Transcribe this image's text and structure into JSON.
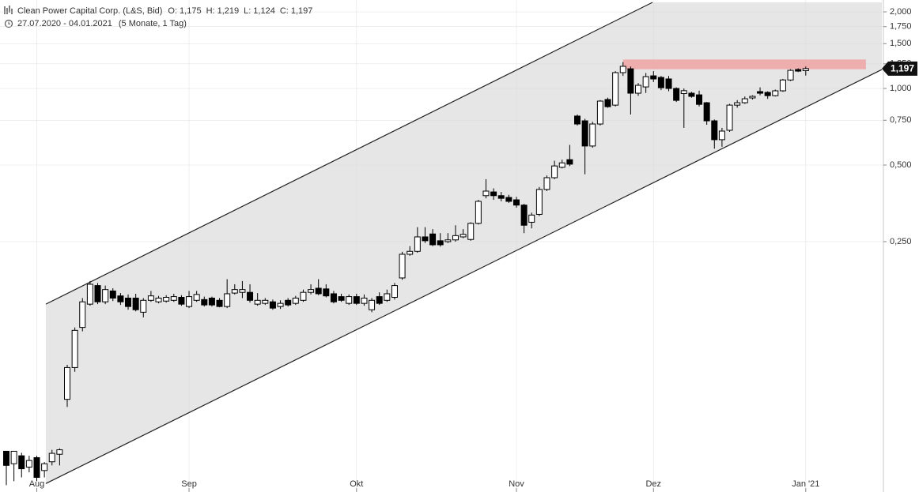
{
  "header": {
    "title": "Clean Power Capital Corp. (L&S, Bid)",
    "ohlc": [
      {
        "label": "O:",
        "value": "1,175"
      },
      {
        "label": "H:",
        "value": "1,219"
      },
      {
        "label": "L:",
        "value": "1,124"
      },
      {
        "label": "C:",
        "value": "1,197"
      }
    ],
    "period": "27.07.2020 - 04.01.2021",
    "duration": "(5 Monate, 1 Tag)"
  },
  "chart_data": {
    "type": "candlestick",
    "categories": [
      null,
      null,
      null,
      null,
      "Aug",
      null,
      null,
      null,
      null,
      null,
      null,
      null,
      null,
      null,
      null,
      null,
      null,
      null,
      null,
      null,
      null,
      null,
      null,
      null,
      "Sep",
      null,
      null,
      null,
      null,
      null,
      null,
      null,
      null,
      null,
      null,
      null,
      null,
      null,
      null,
      null,
      null,
      null,
      null,
      null,
      null,
      null,
      "Okt",
      null,
      null,
      null,
      null,
      null,
      null,
      null,
      null,
      null,
      null,
      null,
      null,
      null,
      null,
      null,
      null,
      null,
      null,
      null,
      null,
      "Nov",
      null,
      null,
      null,
      null,
      null,
      null,
      null,
      null,
      null,
      null,
      null,
      null,
      null,
      null,
      null,
      null,
      null,
      "Dez",
      null,
      null,
      null,
      null,
      null,
      null,
      null,
      null,
      null,
      null,
      null,
      null,
      null,
      null,
      null,
      null,
      null,
      null,
      null,
      "Jan '21"
    ],
    "open": [
      0.0375,
      0.0335,
      0.036,
      0.0325,
      0.0354,
      0.0315,
      0.0341,
      0.0365,
      0.06,
      0.08,
      0.115,
      0.142,
      0.168,
      0.145,
      0.16,
      0.153,
      0.15,
      0.15,
      0.132,
      0.147,
      0.145,
      0.146,
      0.147,
      0.151,
      0.139,
      0.147,
      0.148,
      0.15,
      0.147,
      0.139,
      0.157,
      0.158,
      0.158,
      0.142,
      0.143,
      0.145,
      0.139,
      0.147,
      0.143,
      0.147,
      0.158,
      0.164,
      0.163,
      0.156,
      0.152,
      0.143,
      0.152,
      0.143,
      0.135,
      0.152,
      0.147,
      0.151,
      0.18,
      0.223,
      0.229,
      0.261,
      0.268,
      0.252,
      0.25,
      0.254,
      0.261,
      0.255,
      0.295,
      0.379,
      0.392,
      0.379,
      0.373,
      0.365,
      0.348,
      0.298,
      0.32,
      0.401,
      0.446,
      0.49,
      0.525,
      0.779,
      0.746,
      0.594,
      0.725,
      0.905,
      0.86,
      1.154,
      1.195,
      0.958,
      1.014,
      1.121,
      1.105,
      1.09,
      1.0,
      0.955,
      0.958,
      0.944,
      0.879,
      0.746,
      0.629,
      0.685,
      0.86,
      0.879,
      0.918,
      0.972,
      0.965,
      0.937,
      0.979,
      1.08,
      1.187,
      1.175
    ],
    "high": [
      0.0375,
      0.0375,
      0.037,
      0.036,
      0.036,
      0.034,
      0.038,
      0.0385,
      0.082,
      0.115,
      0.15,
      0.175,
      0.172,
      0.168,
      0.164,
      0.157,
      0.155,
      0.156,
      0.15,
      0.16,
      0.153,
      0.154,
      0.156,
      0.154,
      0.16,
      0.16,
      0.152,
      0.152,
      0.15,
      0.178,
      0.17,
      0.175,
      0.17,
      0.157,
      0.15,
      0.148,
      0.147,
      0.15,
      0.153,
      0.162,
      0.17,
      0.178,
      0.17,
      0.16,
      0.156,
      0.155,
      0.156,
      0.155,
      0.15,
      0.158,
      0.162,
      0.172,
      0.228,
      0.24,
      0.285,
      0.285,
      0.28,
      0.27,
      0.27,
      0.29,
      0.28,
      0.298,
      0.365,
      0.44,
      0.405,
      0.392,
      0.382,
      0.375,
      0.352,
      0.325,
      0.41,
      0.455,
      0.52,
      0.525,
      0.6,
      0.79,
      0.76,
      0.74,
      0.9,
      0.92,
      1.17,
      1.27,
      1.22,
      1.05,
      1.15,
      1.17,
      1.12,
      1.12,
      1.01,
      1.0,
      0.97,
      0.98,
      0.885,
      0.755,
      0.7,
      0.87,
      0.9,
      0.93,
      0.94,
      1.01,
      0.975,
      0.99,
      1.09,
      1.19,
      1.2,
      1.219
    ],
    "low": [
      0.0276,
      0.0286,
      0.0296,
      0.031,
      0.0286,
      0.0296,
      0.033,
      0.033,
      0.056,
      0.077,
      0.111,
      0.14,
      0.142,
      0.142,
      0.146,
      0.141,
      0.135,
      0.133,
      0.126,
      0.145,
      0.143,
      0.144,
      0.145,
      0.14,
      0.137,
      0.145,
      0.139,
      0.139,
      0.138,
      0.137,
      0.155,
      0.15,
      0.144,
      0.14,
      0.141,
      0.135,
      0.136,
      0.139,
      0.141,
      0.145,
      0.155,
      0.154,
      0.151,
      0.143,
      0.145,
      0.141,
      0.141,
      0.14,
      0.132,
      0.141,
      0.145,
      0.148,
      0.177,
      0.22,
      0.226,
      0.247,
      0.24,
      0.239,
      0.247,
      0.25,
      0.258,
      0.252,
      0.292,
      0.37,
      0.365,
      0.36,
      0.355,
      0.34,
      0.27,
      0.282,
      0.315,
      0.395,
      0.44,
      0.485,
      0.495,
      0.715,
      0.46,
      0.585,
      0.715,
      0.84,
      0.85,
      1.12,
      0.79,
      0.935,
      0.96,
      1.06,
      0.985,
      0.975,
      0.885,
      0.7,
      0.92,
      0.85,
      0.72,
      0.58,
      0.59,
      0.675,
      0.84,
      0.87,
      0.905,
      0.94,
      0.91,
      0.93,
      0.97,
      1.07,
      1.16,
      1.124
    ],
    "close": [
      0.033,
      0.0375,
      0.032,
      0.0345,
      0.0296,
      0.0335,
      0.0368,
      0.038,
      0.08,
      0.112,
      0.145,
      0.17,
      0.145,
      0.162,
      0.15,
      0.145,
      0.139,
      0.135,
      0.147,
      0.153,
      0.15,
      0.151,
      0.152,
      0.142,
      0.152,
      0.155,
      0.141,
      0.141,
      0.139,
      0.156,
      0.162,
      0.162,
      0.147,
      0.147,
      0.147,
      0.137,
      0.143,
      0.141,
      0.15,
      0.158,
      0.162,
      0.156,
      0.153,
      0.145,
      0.147,
      0.152,
      0.143,
      0.15,
      0.147,
      0.143,
      0.156,
      0.168,
      0.223,
      0.229,
      0.261,
      0.252,
      0.243,
      0.243,
      0.254,
      0.264,
      0.267,
      0.295,
      0.36,
      0.395,
      0.379,
      0.37,
      0.36,
      0.348,
      0.29,
      0.318,
      0.401,
      0.446,
      0.496,
      0.51,
      0.504,
      0.725,
      0.594,
      0.725,
      0.892,
      0.848,
      1.154,
      1.222,
      0.958,
      1.029,
      1.113,
      1.09,
      1.007,
      1.0,
      0.898,
      0.98,
      0.931,
      0.866,
      0.746,
      0.629,
      0.68,
      0.86,
      0.879,
      0.911,
      0.931,
      0.958,
      0.937,
      0.979,
      1.08,
      1.178,
      1.17,
      1.197
    ],
    "up_color": "#ffffff",
    "down_color": "#000000",
    "xlim": [
      -0.83,
      115.2
    ],
    "ylim": [
      0.0265,
      2.227
    ],
    "log_y": true,
    "yticks": [
      {
        "value": 2,
        "label": "2,000"
      },
      {
        "value": 1.75,
        "label": "1,750"
      },
      {
        "value": 1.5,
        "label": "1,500"
      },
      {
        "value": 1.25,
        "label": "1,250"
      },
      {
        "value": 1,
        "label": "1,000"
      },
      {
        "value": 0.75,
        "label": "0,750"
      },
      {
        "value": 0.5,
        "label": "0,500"
      },
      {
        "value": 0.25,
        "label": "0,250"
      }
    ],
    "grid": true,
    "current_price": {
      "value": 1.197,
      "label": "1,197"
    },
    "channel": {
      "upper": [
        [
          5.19,
          0.142
        ],
        [
          84.87,
          2.18
        ]
      ],
      "lower": [
        [
          5.19,
          0.028
        ],
        [
          115.0,
          1.187
        ]
      ],
      "fill": "#e6e6e6"
    },
    "zone": {
      "x": [
        81.0,
        112.9
      ],
      "y": [
        1.19,
        1.3
      ],
      "color": "#eea3a3"
    }
  }
}
